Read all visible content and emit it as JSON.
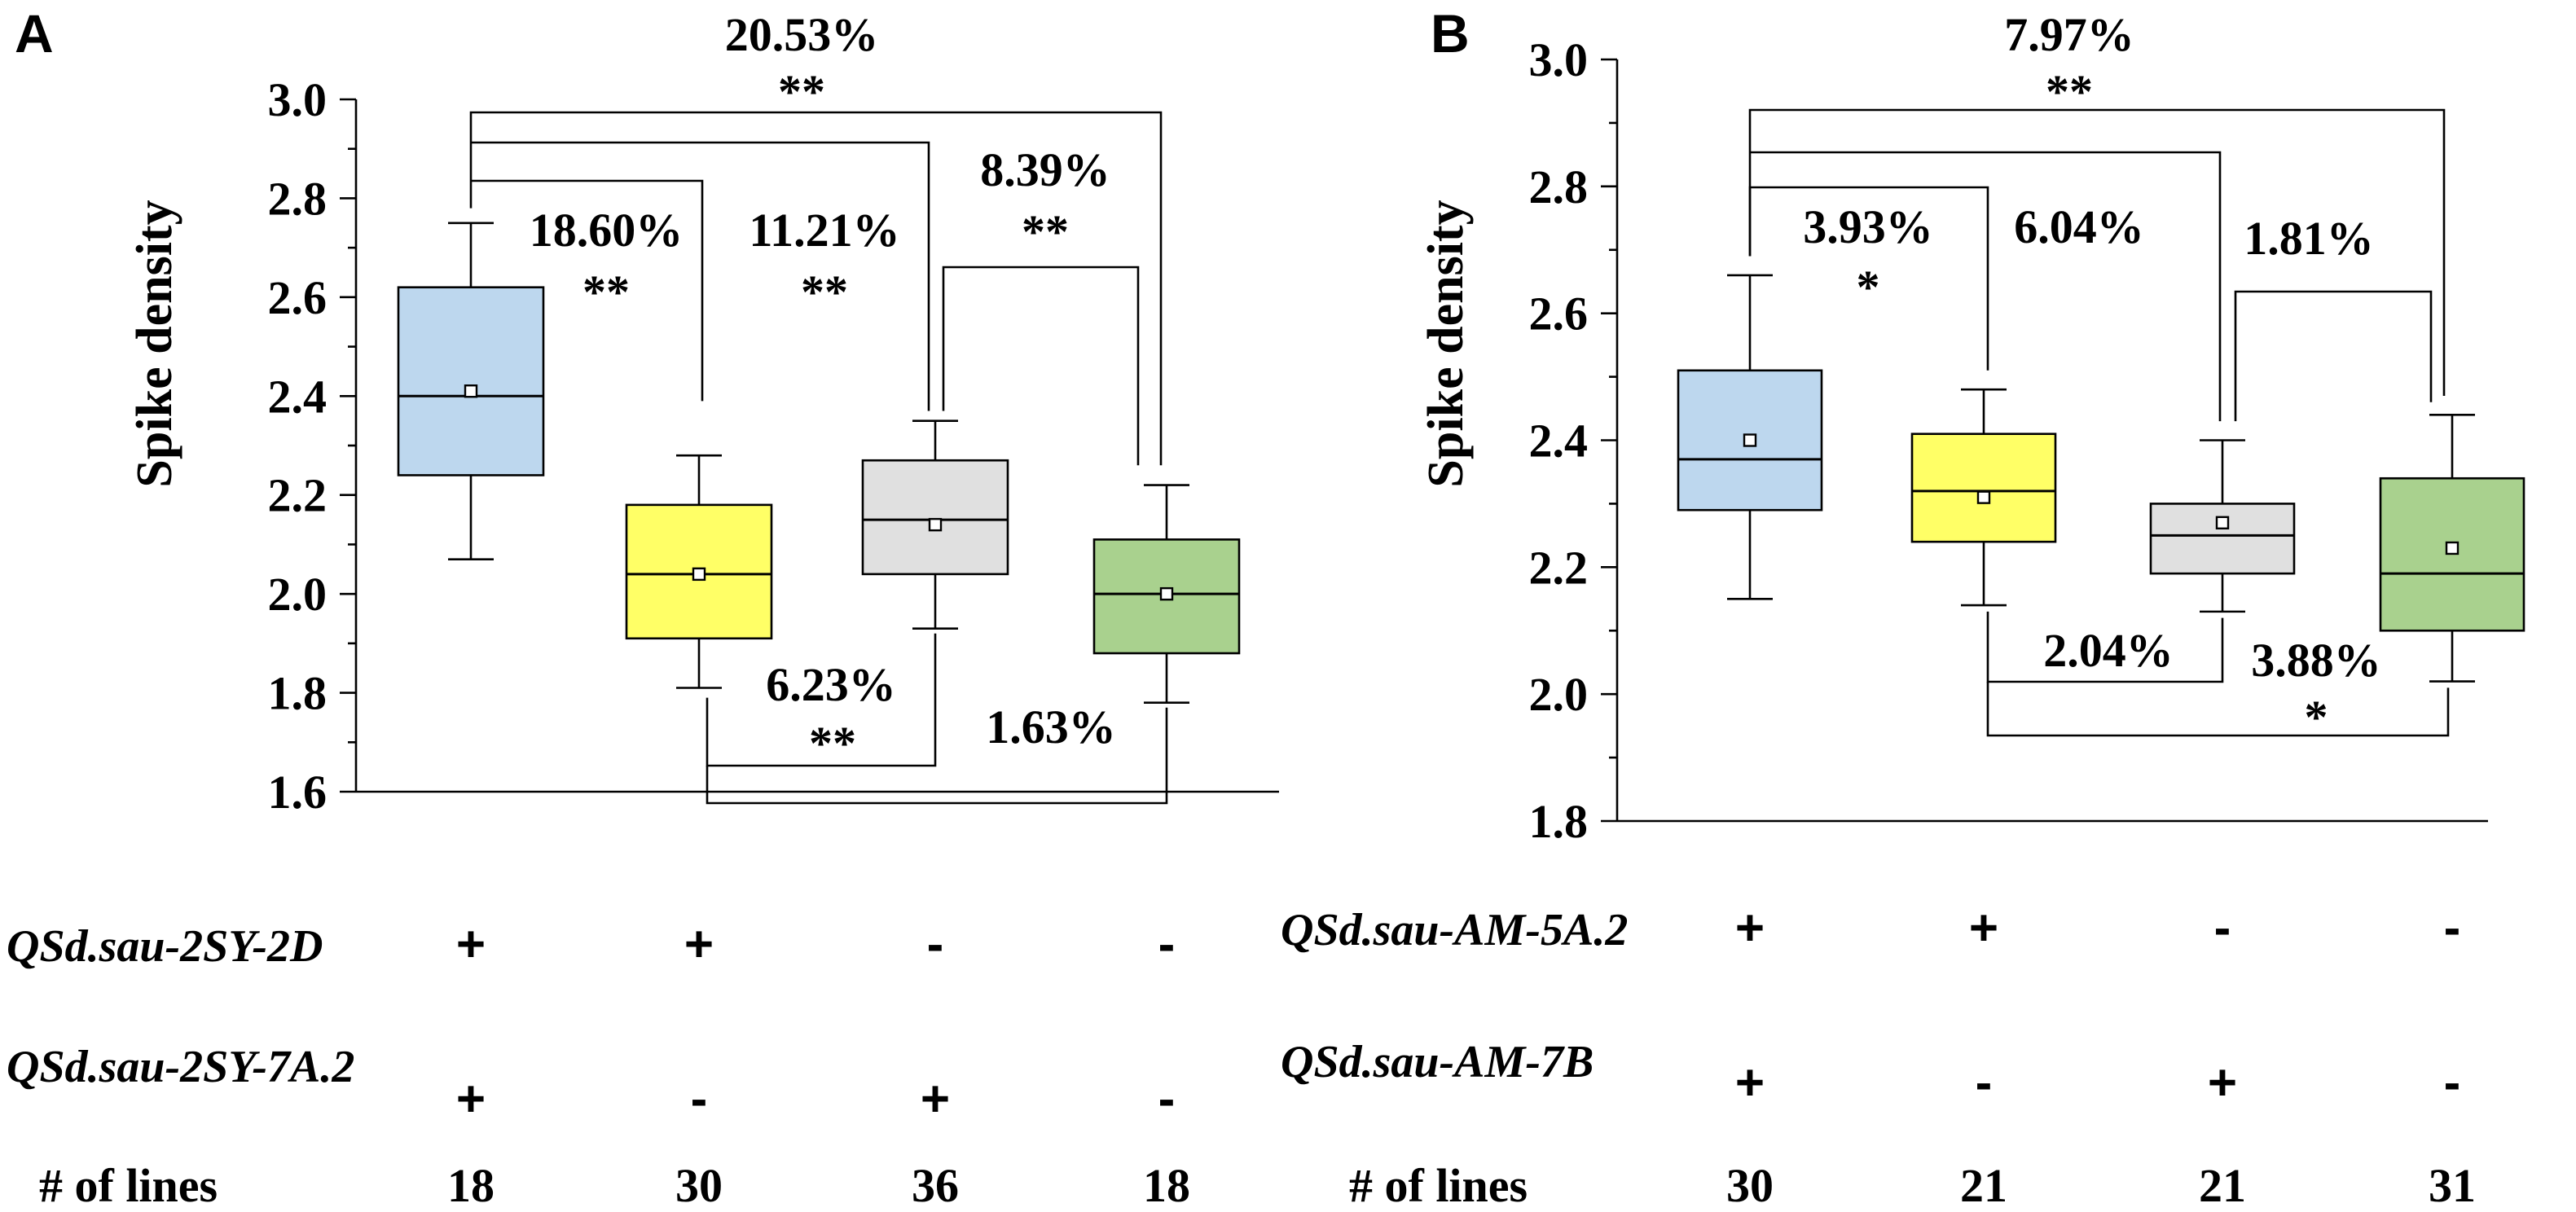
{
  "chart_data": [
    {
      "panel_label": "A",
      "type": "box",
      "ylabel": "Spike density",
      "ylim": [
        1.6,
        3.0
      ],
      "y_ticks": [
        "1.6",
        "1.8",
        "2.0",
        "2.2",
        "2.4",
        "2.6",
        "2.8",
        "3.0"
      ],
      "grid": false,
      "groups": [
        {
          "color": "#bdd7ee",
          "min": 2.07,
          "q1": 2.24,
          "median": 2.4,
          "q3": 2.62,
          "max": 2.75,
          "mean": 2.41,
          "lines": "18",
          "qtl1": "+",
          "qtl2": "+"
        },
        {
          "color": "#ffff66",
          "min": 1.81,
          "q1": 1.91,
          "median": 2.04,
          "q3": 2.18,
          "max": 2.28,
          "mean": 2.04,
          "lines": "30",
          "qtl1": "+",
          "qtl2": "-"
        },
        {
          "color": "#e0e0e0",
          "min": 1.93,
          "q1": 2.04,
          "median": 2.15,
          "q3": 2.27,
          "max": 2.35,
          "mean": 2.14,
          "lines": "36",
          "qtl1": "-",
          "qtl2": "+"
        },
        {
          "color": "#a9d18e",
          "min": 1.78,
          "q1": 1.88,
          "median": 2.0,
          "q3": 2.11,
          "max": 2.22,
          "mean": 2.0,
          "lines": "18",
          "qtl1": "-",
          "qtl2": "-"
        }
      ],
      "comparisons": [
        {
          "pct": "20.53%",
          "sig": "**"
        },
        {
          "pct": "18.60%",
          "sig": "**"
        },
        {
          "pct": "11.21%",
          "sig": "**"
        },
        {
          "pct": "8.39%",
          "sig": "**"
        },
        {
          "pct": "6.23%",
          "sig": "**"
        },
        {
          "pct": "1.63%",
          "sig": ""
        }
      ],
      "qtl_names": [
        "QSd.sau-2SY-2D",
        "QSd.sau-2SY-7A.2"
      ],
      "lines_label": "# of lines"
    },
    {
      "panel_label": "B",
      "type": "box",
      "ylabel": "Spike density",
      "ylim": [
        1.8,
        3.0
      ],
      "y_ticks": [
        "1.8",
        "2.0",
        "2.2",
        "2.4",
        "2.6",
        "2.8",
        "3.0"
      ],
      "grid": false,
      "groups": [
        {
          "color": "#bdd7ee",
          "min": 2.15,
          "q1": 2.29,
          "median": 2.37,
          "q3": 2.51,
          "max": 2.66,
          "mean": 2.4,
          "lines": "30",
          "qtl1": "+",
          "qtl2": "+"
        },
        {
          "color": "#ffff66",
          "min": 2.14,
          "q1": 2.24,
          "median": 2.32,
          "q3": 2.41,
          "max": 2.48,
          "mean": 2.31,
          "lines": "21",
          "qtl1": "+",
          "qtl2": "-"
        },
        {
          "color": "#e0e0e0",
          "min": 2.13,
          "q1": 2.19,
          "median": 2.25,
          "q3": 2.3,
          "max": 2.4,
          "mean": 2.27,
          "lines": "21",
          "qtl1": "-",
          "qtl2": "+"
        },
        {
          "color": "#a9d18e",
          "min": 2.02,
          "q1": 2.1,
          "median": 2.19,
          "q3": 2.34,
          "max": 2.44,
          "mean": 2.23,
          "lines": "31",
          "qtl1": "-",
          "qtl2": "-"
        }
      ],
      "comparisons": [
        {
          "pct": "7.97%",
          "sig": "**"
        },
        {
          "pct": "3.93%",
          "sig": "*"
        },
        {
          "pct": "6.04%",
          "sig": ""
        },
        {
          "pct": "1.81%",
          "sig": ""
        },
        {
          "pct": "2.04%",
          "sig": ""
        },
        {
          "pct": "3.88%",
          "sig": "*"
        }
      ],
      "qtl_names": [
        "QSd.sau-AM-5A.2",
        "QSd.sau-AM-7B"
      ],
      "lines_label": "# of lines"
    }
  ]
}
